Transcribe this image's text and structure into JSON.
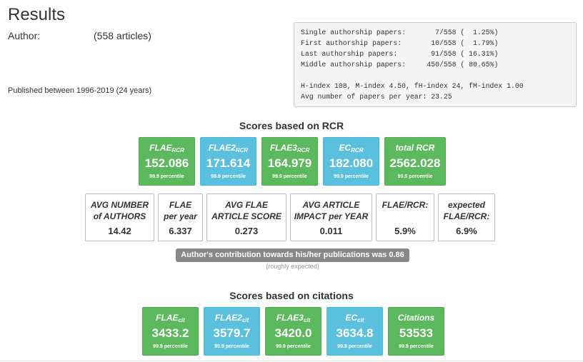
{
  "header": {
    "title": "Results",
    "author_label": "Author:",
    "author_count": "(558 articles)",
    "published": "Published between 1996-2019 (24 years)"
  },
  "stats": {
    "lines": [
      "Single authorship papers:       7/558 (  1.25%)",
      "First authorship papers:       10/558 (  1.79%)",
      "Last authorship papers:        91/558 ( 16.31%)",
      "Middle authorship papers:     450/558 ( 80.65%)"
    ],
    "lines2": [
      "H-index 108, M-index 4.50, fH-index 24, fM-index 1.00",
      "Avg number of papers per year: 23.25"
    ]
  },
  "rcr": {
    "title": "Scores based on RCR",
    "tiles": [
      {
        "label": "FLAE",
        "sub": "RCR",
        "value": "152.086",
        "pct": "99.9 percentile",
        "color": "green"
      },
      {
        "label": "FLAE2",
        "sub": "RCR",
        "value": "171.614",
        "pct": "99.9 percentile",
        "color": "blue"
      },
      {
        "label": "FLAE3",
        "sub": "RCR",
        "value": "164.979",
        "pct": "99.9 percentile",
        "color": "green"
      },
      {
        "label": "EC",
        "sub": "RCR",
        "value": "182.080",
        "pct": "99.9 percentile",
        "color": "blue"
      },
      {
        "label": "total RCR",
        "sub": "",
        "value": "2562.028",
        "pct": "99.9 percentile",
        "color": "green"
      }
    ]
  },
  "metrics": [
    {
      "line1": "AVG NUMBER",
      "line2": "of AUTHORS",
      "value": "14.42"
    },
    {
      "line1": "FLAE",
      "line2": "per year",
      "value": "6.337"
    },
    {
      "line1": "AVG FLAE",
      "line2": "ARTICLE SCORE",
      "value": "0.273"
    },
    {
      "line1": "AVG ARTICLE",
      "line2": "IMPACT per YEAR",
      "value": "0.011"
    },
    {
      "line1": "FLAE/RCR:",
      "line2": "",
      "value": "5.9%"
    },
    {
      "line1": "expected",
      "line2": "FLAE/RCR:",
      "value": "6.9%"
    }
  ],
  "contribution": {
    "text": "Author's contribution towards his/her publications was 0.86",
    "note": "(roughly expected)"
  },
  "citations": {
    "title": "Scores based on citations",
    "tiles": [
      {
        "label": "FLAE",
        "sub": "cit",
        "value": "3433.2",
        "pct": "99.9 percentile",
        "color": "green"
      },
      {
        "label": "FLAE2",
        "sub": "cit",
        "value": "3579.7",
        "pct": "99.9 percentile",
        "color": "blue"
      },
      {
        "label": "FLAE3",
        "sub": "cit",
        "value": "3420.0",
        "pct": "99.9 percentile",
        "color": "green"
      },
      {
        "label": "EC",
        "sub": "cit",
        "value": "3634.8",
        "pct": "99.9 percentile",
        "color": "blue"
      },
      {
        "label": "Citations",
        "sub": "",
        "value": "53533",
        "pct": "99.9 percentile",
        "color": "green"
      }
    ]
  }
}
